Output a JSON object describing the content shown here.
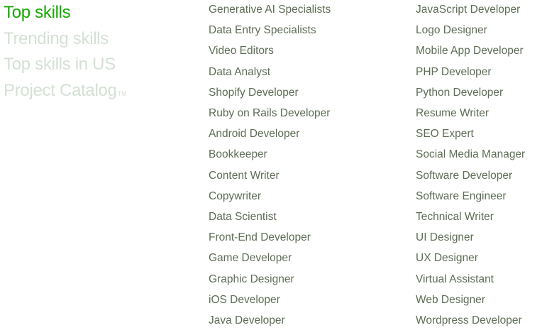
{
  "tabs": [
    {
      "label": "Top skills",
      "active": true
    },
    {
      "label": "Trending skills",
      "active": false
    },
    {
      "label": "Top skills in US",
      "active": false
    },
    {
      "label": "Project Catalog",
      "active": false,
      "suffix": "TM"
    }
  ],
  "column1": [
    "Generative AI Specialists",
    "Data Entry Specialists",
    "Video Editors",
    "Data Analyst",
    "Shopify Developer",
    "Ruby on Rails Developer",
    "Android Developer",
    "Bookkeeper",
    "Content Writer",
    "Copywriter",
    "Data Scientist",
    "Front-End Developer",
    "Game Developer",
    "Graphic Designer",
    "iOS Developer",
    "Java Developer"
  ],
  "column2": [
    "JavaScript Developer",
    "Logo Designer",
    "Mobile App Developer",
    "PHP Developer",
    "Python Developer",
    "Resume Writer",
    "SEO Expert",
    "Social Media Manager",
    "Software Developer",
    "Software Engineer",
    "Technical Writer",
    "UI Designer",
    "UX Designer",
    "Virtual Assistant",
    "Web Designer",
    "Wordpress Developer"
  ],
  "colors": {
    "active_tab": "#14a800",
    "inactive_tab": "#d5e0d5",
    "link": "#5e6d55"
  }
}
